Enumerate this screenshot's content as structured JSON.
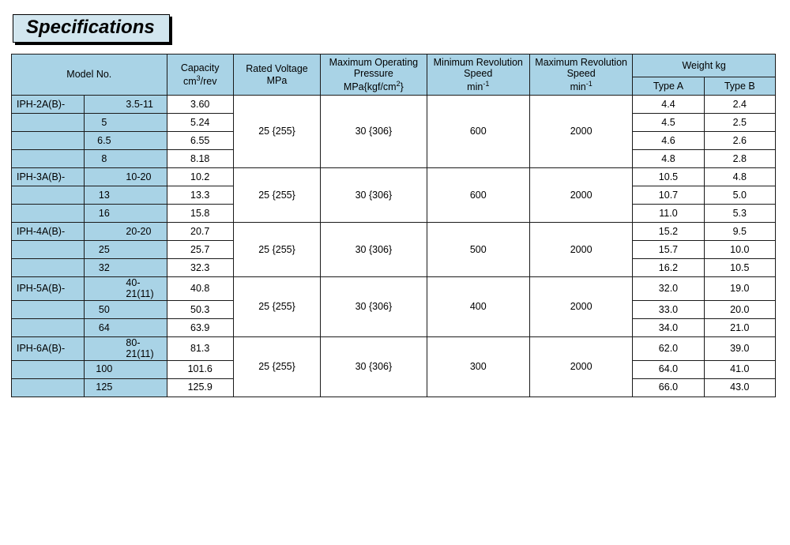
{
  "title": "Specifications",
  "colors": {
    "header_bg": "#a9d3e6",
    "title_bg": "#d2e6ef",
    "border": "#1a1a1a",
    "page_bg": "#ffffff"
  },
  "headers": {
    "model": "Model No.",
    "capacity_l1": "Capacity",
    "capacity_l2": "cm³/rev",
    "rated_l1": "Rated Voltage",
    "rated_l2": "MPa",
    "maxp_l1": "Maximum Operating",
    "maxp_l2": "Pressure",
    "maxp_l3": "MPa{kgf/cm²}",
    "minr_l1": "Minimum Revolution",
    "minr_l2": "Speed",
    "minr_l3": "min⁻¹",
    "maxr_l1": "Maximum Revolution",
    "maxr_l2": "Speed",
    "maxr_l3": "min⁻¹",
    "weight": "Weight kg",
    "type_a": "Type A",
    "type_b": "Type B"
  },
  "groups": [
    {
      "rated": "25 {255}",
      "maxp": "30 {306}",
      "minr": "600",
      "maxr": "2000",
      "rows": [
        {
          "m1": "IPH-2A(B)-",
          "m2": "",
          "m3": "3.5-11",
          "cap": "3.60",
          "wa": "4.4",
          "wb": "2.4"
        },
        {
          "m1": "",
          "m2": "5",
          "m3": "",
          "cap": "5.24",
          "wa": "4.5",
          "wb": "2.5"
        },
        {
          "m1": "",
          "m2": "6.5",
          "m3": "",
          "cap": "6.55",
          "wa": "4.6",
          "wb": "2.6"
        },
        {
          "m1": "",
          "m2": "8",
          "m3": "",
          "cap": "8.18",
          "wa": "4.8",
          "wb": "2.8"
        }
      ]
    },
    {
      "rated": "25 {255}",
      "maxp": "30 {306}",
      "minr": "600",
      "maxr": "2000",
      "rows": [
        {
          "m1": "IPH-3A(B)-",
          "m2": "",
          "m3": "10-20",
          "cap": "10.2",
          "wa": "10.5",
          "wb": "4.8"
        },
        {
          "m1": "",
          "m2": "13",
          "m3": "",
          "cap": "13.3",
          "wa": "10.7",
          "wb": "5.0"
        },
        {
          "m1": "",
          "m2": "16",
          "m3": "",
          "cap": "15.8",
          "wa": "11.0",
          "wb": "5.3"
        }
      ]
    },
    {
      "rated": "25 {255}",
      "maxp": "30 {306}",
      "minr": "500",
      "maxr": "2000",
      "rows": [
        {
          "m1": "IPH-4A(B)-",
          "m2": "",
          "m3": "20-20",
          "cap": "20.7",
          "wa": "15.2",
          "wb": "9.5"
        },
        {
          "m1": "",
          "m2": "25",
          "m3": "",
          "cap": "25.7",
          "wa": "15.7",
          "wb": "10.0"
        },
        {
          "m1": "",
          "m2": "32",
          "m3": "",
          "cap": "32.3",
          "wa": "16.2",
          "wb": "10.5"
        }
      ]
    },
    {
      "rated": "25 {255}",
      "maxp": "30 {306}",
      "minr": "400",
      "maxr": "2000",
      "rows": [
        {
          "m1": "IPH-5A(B)-",
          "m2": "",
          "m3": "40-21(11)",
          "cap": "40.8",
          "wa": "32.0",
          "wb": "19.0"
        },
        {
          "m1": "",
          "m2": "50",
          "m3": "",
          "cap": "50.3",
          "wa": "33.0",
          "wb": "20.0"
        },
        {
          "m1": "",
          "m2": "64",
          "m3": "",
          "cap": "63.9",
          "wa": "34.0",
          "wb": "21.0"
        }
      ]
    },
    {
      "rated": "25 {255}",
      "maxp": "30 {306}",
      "minr": "300",
      "maxr": "2000",
      "rows": [
        {
          "m1": "IPH-6A(B)-",
          "m2": "",
          "m3": "80-21(11)",
          "cap": "81.3",
          "wa": "62.0",
          "wb": "39.0"
        },
        {
          "m1": "",
          "m2": "100",
          "m3": "",
          "cap": "101.6",
          "wa": "64.0",
          "wb": "41.0"
        },
        {
          "m1": "",
          "m2": "125",
          "m3": "",
          "cap": "125.9",
          "wa": "66.0",
          "wb": "43.0"
        }
      ]
    }
  ]
}
